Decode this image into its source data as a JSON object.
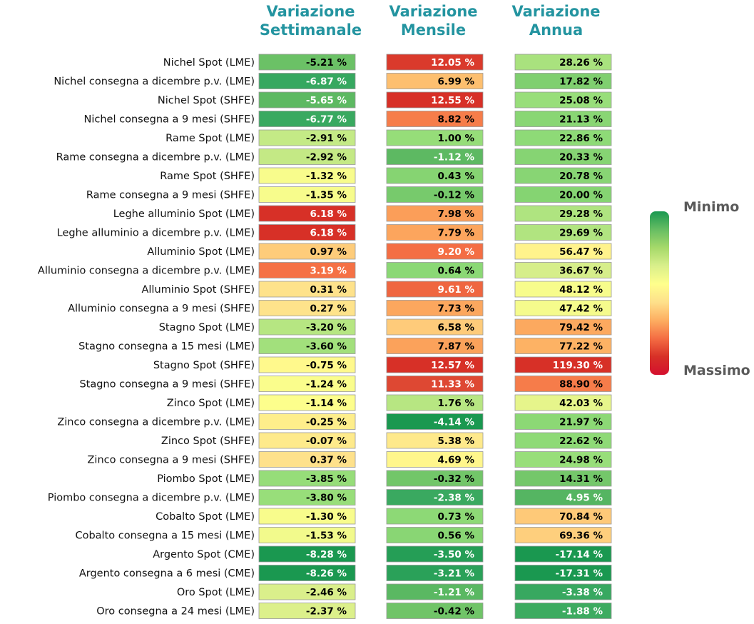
{
  "chart_data": {
    "type": "table",
    "columns": [
      "Variazione Settimanale",
      "Variazione Mensile",
      "Variazione Annua"
    ],
    "column_titles": [
      [
        "Variazione",
        "Settimanale"
      ],
      [
        "Variazione",
        "Mensile"
      ],
      [
        "Variazione",
        "Annua"
      ]
    ],
    "unit": "%",
    "rows": [
      "Nichel Spot (LME)",
      "Nichel consegna a dicembre p.v. (LME)",
      "Nichel Spot (SHFE)",
      "Nichel consegna a 9 mesi (SHFE)",
      "Rame Spot (LME)",
      "Rame consegna a dicembre p.v. (LME)",
      "Rame Spot (SHFE)",
      "Rame consegna a 9 mesi (SHFE)",
      "Leghe alluminio Spot (LME)",
      "Leghe alluminio a dicembre p.v. (LME)",
      "Alluminio Spot (LME)",
      "Alluminio consegna a dicembre p.v. (LME)",
      "Alluminio Spot (SHFE)",
      "Alluminio consegna a 9 mesi (SHFE)",
      "Stagno Spot (LME)",
      "Stagno consegna a 15 mesi (LME)",
      "Stagno Spot (SHFE)",
      "Stagno consegna a 9 mesi (SHFE)",
      "Zinco Spot (LME)",
      "Zinco consegna a dicembre p.v. (LME)",
      "Zinco Spot (SHFE)",
      "Zinco consegna a 9 mesi (SHFE)",
      "Piombo Spot (LME)",
      "Piombo consegna a dicembre p.v. (LME)",
      "Cobalto Spot (LME)",
      "Cobalto consegna a 15 mesi (LME)",
      "Argento Spot (CME)",
      "Argento consegna a 6 mesi (CME)",
      "Oro Spot (LME)",
      "Oro consegna a 24 mesi (LME)"
    ],
    "values": {
      "settimanale": [
        -5.21,
        -6.87,
        -5.65,
        -6.77,
        -2.91,
        -2.92,
        -1.32,
        -1.35,
        6.18,
        6.18,
        0.97,
        3.19,
        0.31,
        0.27,
        -3.2,
        -3.6,
        -0.75,
        -1.24,
        -1.14,
        -0.25,
        -0.07,
        0.37,
        -3.85,
        -3.8,
        -1.3,
        -1.53,
        -8.28,
        -8.26,
        -2.46,
        -2.37
      ],
      "mensile": [
        12.05,
        6.99,
        12.55,
        8.82,
        1.0,
        -1.12,
        0.43,
        -0.12,
        7.98,
        7.79,
        9.2,
        0.64,
        9.61,
        7.73,
        6.58,
        7.87,
        12.57,
        11.33,
        1.76,
        -4.14,
        5.38,
        4.69,
        -0.32,
        -2.38,
        0.73,
        0.56,
        -3.5,
        -3.21,
        -1.21,
        -0.42
      ],
      "annua": [
        28.26,
        17.82,
        25.08,
        21.13,
        22.86,
        20.33,
        20.78,
        20.0,
        29.28,
        29.69,
        56.47,
        36.67,
        48.12,
        47.42,
        79.42,
        77.22,
        119.3,
        88.9,
        42.03,
        21.97,
        22.62,
        24.98,
        14.31,
        4.95,
        70.84,
        69.36,
        -17.14,
        -17.31,
        -3.38,
        -1.88
      ]
    },
    "colormap": "RdYlGn reversed (red = higher value, green = lower value)",
    "legend": {
      "min_label": "Minimo",
      "max_label": "Massimo",
      "placement": "right",
      "colors": [
        "#1a9850",
        "#66bd63",
        "#a6d96a",
        "#d9ef8b",
        "#ffff8c",
        "#fee08b",
        "#fdae61",
        "#f46d43",
        "#d73027",
        "#d4102e"
      ]
    },
    "colors": {
      "header": "#2394a0",
      "label": "#111111",
      "legend_text": "#5a5a5a",
      "cell_border": "#9a9a9a"
    }
  }
}
